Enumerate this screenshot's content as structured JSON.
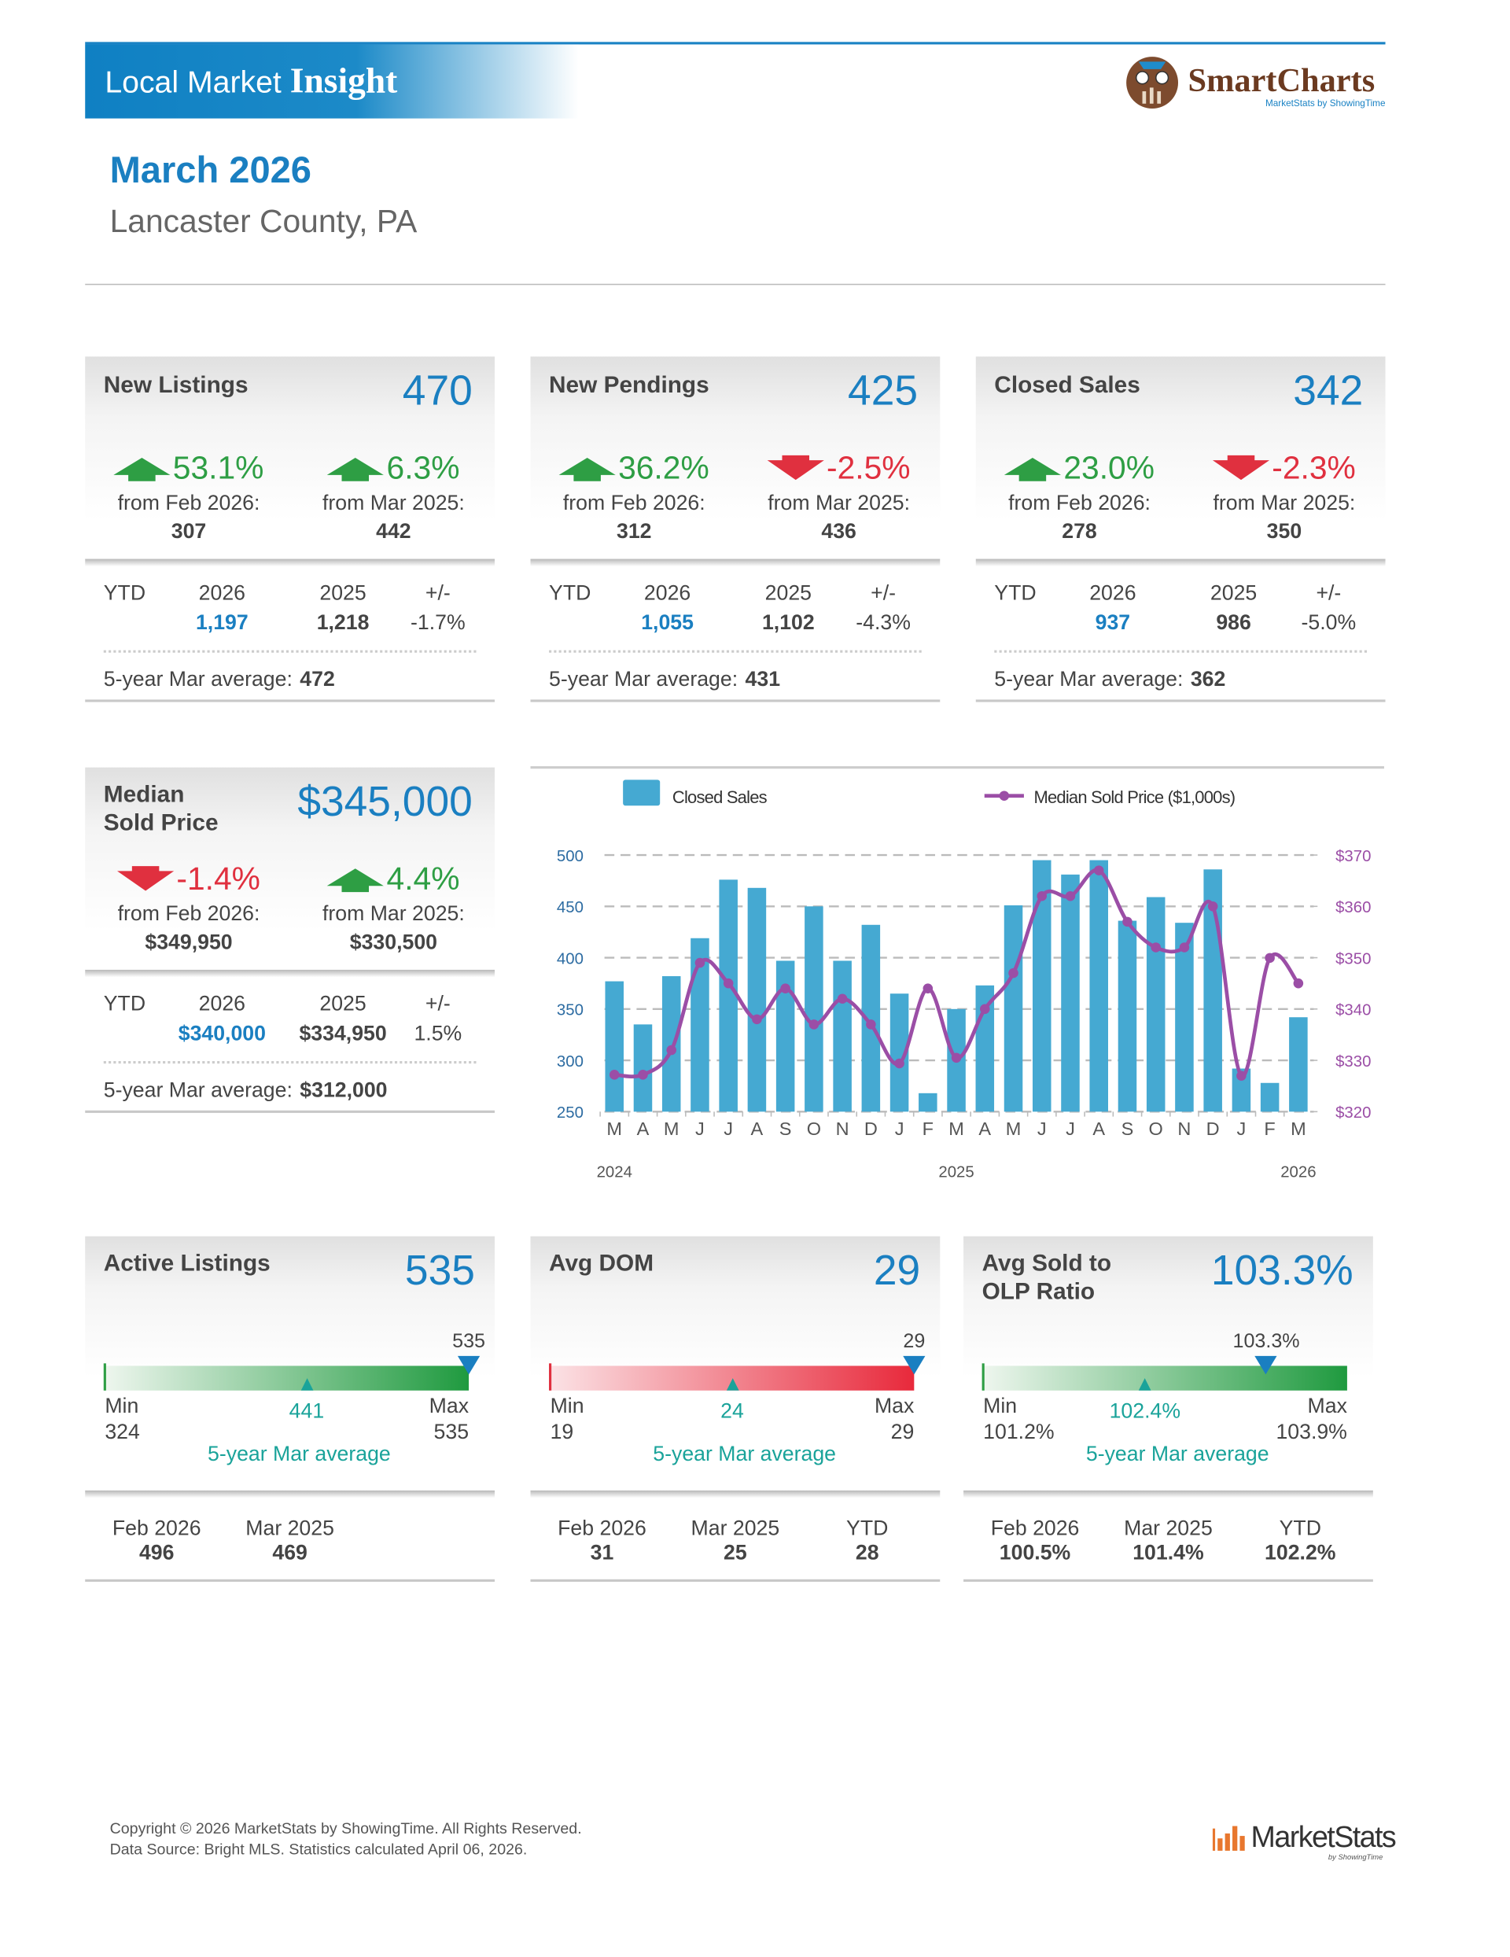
{
  "header": {
    "title": "Local Market",
    "title_bold": "Insight",
    "logo": "SmartCharts",
    "logo_tagline": "MarketStats by ShowingTime"
  },
  "report": {
    "period": "March 2026",
    "location": "Lancaster County, PA"
  },
  "metric_cards": [
    {
      "title": [
        "New Listings"
      ],
      "value": "470",
      "changes": [
        {
          "direction": "up",
          "percent": "53.1%",
          "from": "from Feb 2026:",
          "base": "307"
        },
        {
          "direction": "up",
          "percent": "6.3%",
          "from": "from Mar 2025:",
          "base": "442"
        }
      ],
      "ytd": {
        "label": "YTD",
        "columns": [
          "2026",
          "2025",
          "+/-"
        ],
        "values": [
          "1,197",
          "1,218",
          "-1.7%"
        ]
      },
      "average": {
        "label": "5-year Mar average:",
        "value": "472"
      }
    },
    {
      "title": [
        "New Pendings"
      ],
      "value": "425",
      "changes": [
        {
          "direction": "up",
          "percent": "36.2%",
          "from": "from Feb 2026:",
          "base": "312"
        },
        {
          "direction": "down",
          "percent": "-2.5%",
          "from": "from Mar 2025:",
          "base": "436"
        }
      ],
      "ytd": {
        "label": "YTD",
        "columns": [
          "2026",
          "2025",
          "+/-"
        ],
        "values": [
          "1,055",
          "1,102",
          "-4.3%"
        ]
      },
      "average": {
        "label": "5-year Mar average:",
        "value": "431"
      }
    },
    {
      "title": [
        "Closed Sales"
      ],
      "value": "342",
      "changes": [
        {
          "direction": "up",
          "percent": "23.0%",
          "from": "from Feb 2026:",
          "base": "278"
        },
        {
          "direction": "down",
          "percent": "-2.3%",
          "from": "from Mar 2025:",
          "base": "350"
        }
      ],
      "ytd": {
        "label": "YTD",
        "columns": [
          "2026",
          "2025",
          "+/-"
        ],
        "values": [
          "937",
          "986",
          "-5.0%"
        ]
      },
      "average": {
        "label": "5-year Mar average:",
        "value": "362"
      }
    },
    {
      "title": [
        "Median",
        "Sold Price"
      ],
      "value": "$345,000",
      "changes": [
        {
          "direction": "down",
          "percent": "-1.4%",
          "from": "from Feb 2026:",
          "base": "$349,950"
        },
        {
          "direction": "up",
          "percent": "4.4%",
          "from": "from Mar 2025:",
          "base": "$330,500"
        }
      ],
      "ytd": {
        "label": "YTD",
        "columns": [
          "2026",
          "2025",
          "+/-"
        ],
        "values": [
          "$340,000",
          "$334,950",
          "1.5%"
        ]
      },
      "average": {
        "label": "5-year Mar average:",
        "value": "$312,000"
      }
    }
  ],
  "chart_data": {
    "type": "bar_line",
    "categories": [
      "M",
      "A",
      "M",
      "J",
      "J",
      "A",
      "S",
      "O",
      "N",
      "D",
      "J",
      "F",
      "M",
      "A",
      "M",
      "J",
      "J",
      "A",
      "S",
      "O",
      "N",
      "D",
      "J",
      "F",
      "M"
    ],
    "x_group_labels": [
      "2024",
      "2025",
      "2026"
    ],
    "series": [
      {
        "name": "Closed Sales",
        "type": "bar",
        "color": "#45a9d2",
        "values": [
          377,
          335,
          382,
          419,
          476,
          468,
          397,
          450,
          397,
          432,
          365,
          268,
          350,
          373,
          451,
          495,
          481,
          495,
          436,
          459,
          434,
          486,
          292,
          278,
          342
        ]
      },
      {
        "name": "Median Sold Price ($1,000s)",
        "type": "line",
        "axis": "y2",
        "color": "#9b4ea6",
        "values": [
          327.2,
          327.2,
          332,
          349,
          345,
          338,
          344,
          337,
          342,
          337,
          329.4,
          344,
          330.5,
          340,
          347,
          362,
          362,
          367,
          357,
          352,
          352,
          360,
          327,
          349.95,
          345
        ]
      }
    ],
    "ylim": [
      250,
      500
    ],
    "yticks": [
      250,
      300,
      350,
      400,
      450,
      500
    ],
    "y2lim": [
      320,
      370
    ],
    "y2ticks": [
      {
        "value": 320,
        "label": "$320"
      },
      {
        "value": 330,
        "label": "$330"
      },
      {
        "value": 340,
        "label": "$340"
      },
      {
        "value": 350,
        "label": "$350"
      },
      {
        "value": 360,
        "label": "$360"
      },
      {
        "value": 370,
        "label": "$370"
      }
    ],
    "grid": true
  },
  "gauge_cards": [
    {
      "title": [
        "Active Listings"
      ],
      "value": "535",
      "gauge": {
        "color": "green",
        "current": "535",
        "min_label": "Min",
        "min": "324",
        "max_label": "Max",
        "max": "535",
        "average": "441",
        "average_label": "5-year Mar average"
      },
      "comparisons": [
        {
          "label": "Feb 2026",
          "value": "496"
        },
        {
          "label": "Mar 2025",
          "value": "469"
        }
      ]
    },
    {
      "title": [
        "Avg DOM"
      ],
      "value": "29",
      "gauge": {
        "color": "red",
        "current": "29",
        "min_label": "Min",
        "min": "19",
        "max_label": "Max",
        "max": "29",
        "average": "24",
        "average_label": "5-year Mar average"
      },
      "comparisons": [
        {
          "label": "Feb 2026",
          "value": "31"
        },
        {
          "label": "Mar 2025",
          "value": "25"
        },
        {
          "label": "YTD",
          "value": "28"
        }
      ]
    },
    {
      "title": [
        "Avg Sold to",
        "OLP Ratio"
      ],
      "value": "103.3%",
      "gauge": {
        "color": "green",
        "current": "103.3%",
        "min_label": "Min",
        "min": "101.2%",
        "max_label": "Max",
        "max": "103.9%",
        "average": "102.4%",
        "average_label": "5-year Mar average"
      },
      "comparisons": [
        {
          "label": "Feb 2026",
          "value": "100.5%"
        },
        {
          "label": "Mar 2025",
          "value": "101.4%"
        },
        {
          "label": "YTD",
          "value": "102.2%"
        }
      ]
    }
  ],
  "footer": {
    "copyright": "Copyright © 2026 MarketStats by ShowingTime. All Rights Reserved.",
    "source": "Data Source: Bright MLS. Statistics calculated April 06, 2026.",
    "logo": "MarketStats",
    "logo_tagline": "by ShowingTime"
  }
}
